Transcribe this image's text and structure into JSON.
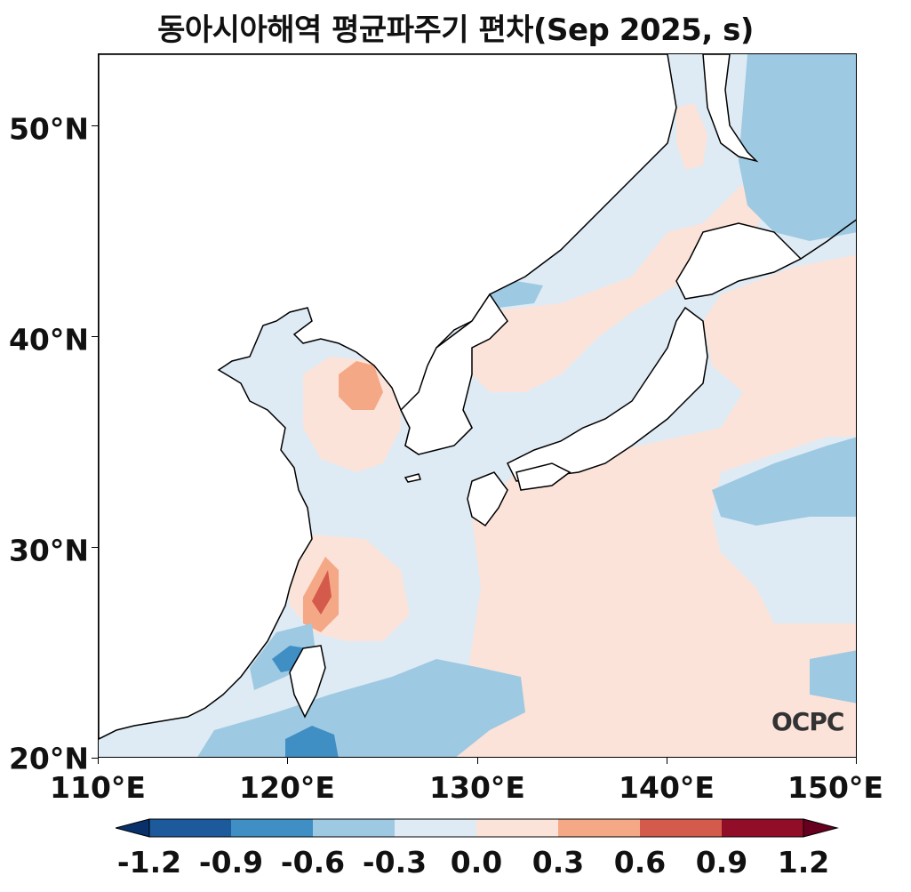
{
  "title": "동아시아해역 평균파주기 편차(Sep 2025, s)",
  "logo_text": "OCPC",
  "axes": {
    "lat_labels": [
      "50°N",
      "40°N",
      "30°N",
      "20°N"
    ],
    "lon_labels": [
      "110°E",
      "120°E",
      "130°E",
      "140°E",
      "150°E"
    ],
    "lon_range": [
      110,
      150
    ],
    "lat_range": [
      20,
      53.5
    ]
  },
  "colorbar": {
    "labels": [
      "-1.2",
      "-0.9",
      "-0.6",
      "-0.3",
      "0.0",
      "0.3",
      "0.6",
      "0.9",
      "1.2"
    ],
    "colors": [
      "#08306b",
      "#1c5a9b",
      "#3f8fc5",
      "#9ec9e2",
      "#deebf4",
      "#fbe3d9",
      "#f5a886",
      "#d45a4b",
      "#920d27",
      "#67001f"
    ]
  },
  "colors": {
    "land": "#ffffff",
    "coast": "#000000",
    "sea_base": "#deebf4",
    "pos_light": "#fbe3d9",
    "pos_mid": "#f5a886",
    "pos_strong": "#d45a4b",
    "neg_light": "#9ec9e2",
    "neg_mid": "#3f8fc5"
  }
}
